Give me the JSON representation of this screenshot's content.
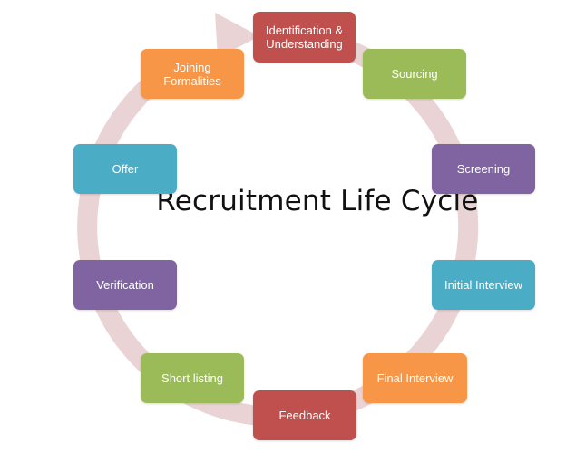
{
  "diagram": {
    "title": "Recruitment Life Cycle",
    "ring_color": "#EAD3D5",
    "stages": [
      {
        "label": "Identification &\nUnderstanding",
        "color": "#C0504D"
      },
      {
        "label": "Sourcing",
        "color": "#9BBB59"
      },
      {
        "label": "Screening",
        "color": "#8064A2"
      },
      {
        "label": "Initial Interview",
        "color": "#4BACC6"
      },
      {
        "label": "Final Interview",
        "color": "#F79646"
      },
      {
        "label": "Feedback",
        "color": "#C0504D"
      },
      {
        "label": "Short listing",
        "color": "#9BBB59"
      },
      {
        "label": "Verification",
        "color": "#8064A2"
      },
      {
        "label": "Offer",
        "color": "#4BACC6"
      },
      {
        "label": "Joining\nFormalities",
        "color": "#F79646"
      }
    ]
  }
}
